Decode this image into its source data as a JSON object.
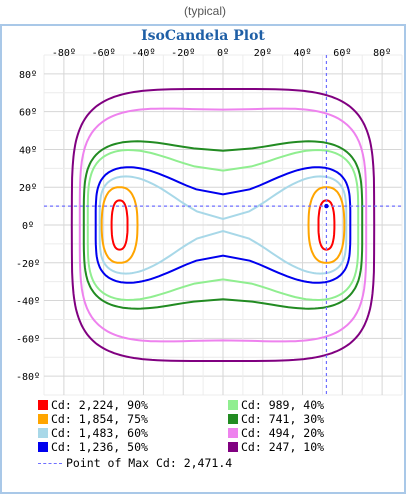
{
  "caption": "(typical)",
  "chart_data": {
    "type": "contour",
    "title": "IsoCandela Plot",
    "x_ticks": [
      "-80º",
      "-60º",
      "-40º",
      "-20º",
      "0º",
      "20º",
      "40º",
      "60º",
      "80º"
    ],
    "y_ticks": [
      "80º",
      "60º",
      "40º",
      "20º",
      "0º",
      "-20º",
      "-40º",
      "-60º",
      "-80º"
    ],
    "xlim": [
      -90,
      90
    ],
    "ylim": [
      -90,
      90
    ],
    "grid": true,
    "max_point": {
      "x": 52,
      "y": 10
    },
    "levels": [
      {
        "label": "Cd: 2,224, 90%",
        "color": "#ff0000",
        "lobes": [
          {
            "cx": -52,
            "cy": 0,
            "rx": 4,
            "ry": 13
          },
          {
            "cx": 52,
            "cy": 0,
            "rx": 4,
            "ry": 13
          }
        ]
      },
      {
        "label": "Cd: 1,854, 75%",
        "color": "#ffa500",
        "lobes": [
          {
            "cx": -52,
            "cy": 0,
            "rx": 9,
            "ry": 20
          },
          {
            "cx": 52,
            "cy": 0,
            "rx": 9,
            "ry": 20
          }
        ]
      },
      {
        "label": "Cd: 1,483, 60%",
        "color": "#a8d8e8",
        "hx": 62,
        "hy": 32,
        "neck": 0.9
      },
      {
        "label": "Cd: 1,236, 50%",
        "color": "#0000ee",
        "hx": 64,
        "hy": 36,
        "neck": 0.55
      },
      {
        "label": "Cd: 989, 40%",
        "color": "#90ee90",
        "hx": 68,
        "hy": 45,
        "neck": 0.36
      },
      {
        "label": "Cd: 741, 30%",
        "color": "#228b22",
        "hx": 70,
        "hy": 48,
        "neck": 0.18
      },
      {
        "label": "Cd: 494, 20%",
        "color": "#ee82ee",
        "hx": 72,
        "hy": 63,
        "neck": 0.03
      },
      {
        "label": "Cd: 247, 10%",
        "color": "#800080",
        "hx": 76,
        "hy": 72,
        "neck": 0
      }
    ],
    "max_label": "Point of Max Cd: 2,471.4",
    "max_color": "#6f6fff"
  }
}
